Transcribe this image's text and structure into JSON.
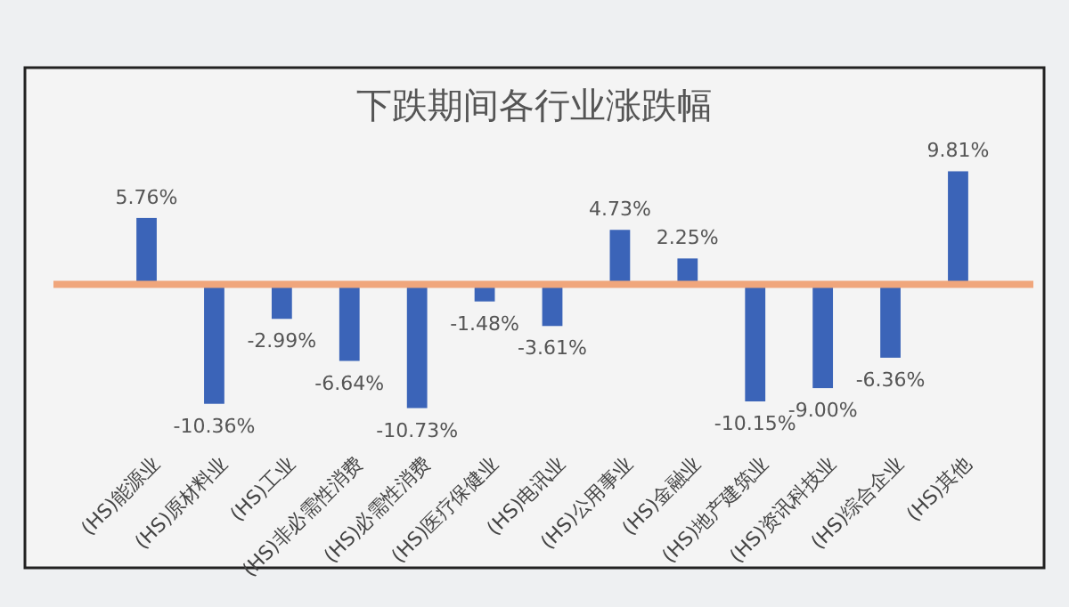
{
  "chart_data": {
    "type": "bar",
    "title": "下跌期间各行业涨跌幅",
    "categories": [
      "(HS)能源业",
      "(HS)原材料业",
      "(HS)工业",
      "(HS)非必需性消费",
      "(HS)必需性消费",
      "(HS)医疗保健业",
      "(HS)电讯业",
      "(HS)公用事业",
      "(HS)金融业",
      "(HS)地产建筑业",
      "(HS)资讯科技业",
      "(HS)综合企业",
      "(HS)其他"
    ],
    "values": [
      5.76,
      -10.36,
      -2.99,
      -6.64,
      -10.73,
      -1.48,
      -3.61,
      4.73,
      2.25,
      -10.15,
      -9.0,
      -6.36,
      9.81
    ],
    "value_labels": [
      "5.76%",
      "-10.36%",
      "-2.99%",
      "-6.64%",
      "-10.73%",
      "-1.48%",
      "-3.61%",
      "4.73%",
      "2.25%",
      "-10.15%",
      "-9.00%",
      "-6.36%",
      "9.81%"
    ],
    "color": "#3b64b8",
    "ylim": [
      -11,
      10
    ],
    "ref_lines": [
      {
        "axis": "y",
        "value": 0,
        "color": "#f0a67c"
      }
    ]
  }
}
